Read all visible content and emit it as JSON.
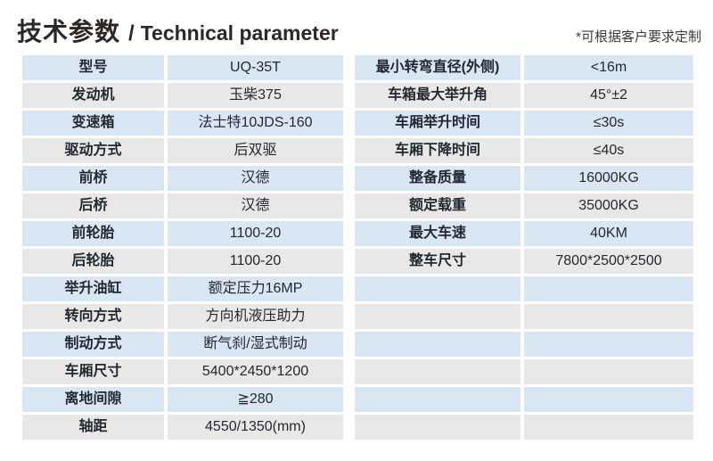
{
  "header": {
    "title_cn": "技术参数",
    "title_sep": "/",
    "title_en": "Technical parameter",
    "note": "*可根据客户要求定制"
  },
  "colors": {
    "row_blue": "#d9e7f4",
    "row_gray": "#e9e8e6",
    "text": "#222831",
    "title": "#2b2826"
  },
  "left_table": {
    "rows": [
      {
        "label": "型号",
        "value": "UQ-35T"
      },
      {
        "label": "发动机",
        "value": "玉柴375"
      },
      {
        "label": "变速箱",
        "value": "法士特10JDS-160"
      },
      {
        "label": "驱动方式",
        "value": "后双驱"
      },
      {
        "label": "前桥",
        "value": "汉德"
      },
      {
        "label": "后桥",
        "value": "汉德"
      },
      {
        "label": "前轮胎",
        "value": "1100-20"
      },
      {
        "label": "后轮胎",
        "value": "1100-20"
      },
      {
        "label": "举升油缸",
        "value": "额定压力16MP"
      },
      {
        "label": "转向方式",
        "value": "方向机液压助力"
      },
      {
        "label": "制动方式",
        "value": "断气刹/湿式制动"
      },
      {
        "label": "车厢尺寸",
        "value": "5400*2450*1200"
      },
      {
        "label": "离地间隙",
        "value": "≧280"
      },
      {
        "label": "轴距",
        "value": "4550/1350(mm)"
      }
    ]
  },
  "right_table": {
    "rows": [
      {
        "label": "最小转弯直径(外侧)",
        "value": "<16m"
      },
      {
        "label": "车箱最大举升角",
        "value": "45°±2"
      },
      {
        "label": "车厢举升时间",
        "value": "≤30s"
      },
      {
        "label": "车厢下降时间",
        "value": "≤40s"
      },
      {
        "label": "整备质量",
        "value": "16000KG"
      },
      {
        "label": "额定载重",
        "value": "35000KG"
      },
      {
        "label": "最大车速",
        "value": "40KM"
      },
      {
        "label": "整车尺寸",
        "value": "7800*2500*2500"
      },
      {
        "label": "",
        "value": ""
      },
      {
        "label": "",
        "value": ""
      },
      {
        "label": "",
        "value": ""
      },
      {
        "label": "",
        "value": ""
      },
      {
        "label": "",
        "value": ""
      },
      {
        "label": "",
        "value": ""
      }
    ]
  }
}
